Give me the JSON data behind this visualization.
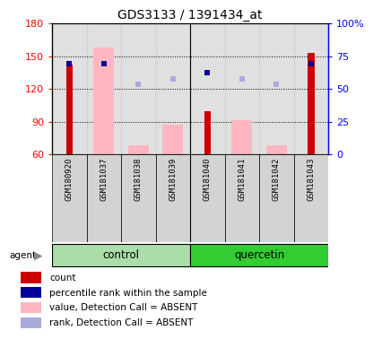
{
  "title": "GDS3133 / 1391434_at",
  "samples": [
    "GSM180920",
    "GSM181037",
    "GSM181038",
    "GSM181039",
    "GSM181040",
    "GSM181041",
    "GSM181042",
    "GSM181043"
  ],
  "bar_bottom": 60,
  "ylim": [
    60,
    180
  ],
  "yticks_left": [
    60,
    90,
    120,
    150,
    180
  ],
  "yticks_right": [
    0,
    25,
    50,
    75,
    100
  ],
  "ytick_right_labels": [
    "0",
    "25",
    "50",
    "75",
    "100%"
  ],
  "count_values": [
    142,
    null,
    null,
    null,
    100,
    null,
    null,
    153
  ],
  "absent_bar_vals": [
    null,
    158,
    68,
    87,
    null,
    91,
    68,
    null
  ],
  "pct_rank_vals": [
    143,
    143,
    null,
    null,
    135,
    null,
    null,
    143
  ],
  "absent_rank_vals": [
    null,
    null,
    124,
    129,
    null,
    129,
    124,
    null
  ],
  "count_color": "#CC0000",
  "absent_bar_color": "#FFB6C1",
  "pct_rank_color": "#000099",
  "absent_rank_color": "#AAAADD",
  "col_bg_color": "#D3D3D3",
  "control_color": "#AADDAA",
  "quercetin_color": "#33CC33",
  "legend_items": [
    {
      "color": "#CC0000",
      "label": "count"
    },
    {
      "color": "#000099",
      "label": "percentile rank within the sample"
    },
    {
      "color": "#FFB6C1",
      "label": "value, Detection Call = ABSENT"
    },
    {
      "color": "#AAAADD",
      "label": "rank, Detection Call = ABSENT"
    }
  ]
}
